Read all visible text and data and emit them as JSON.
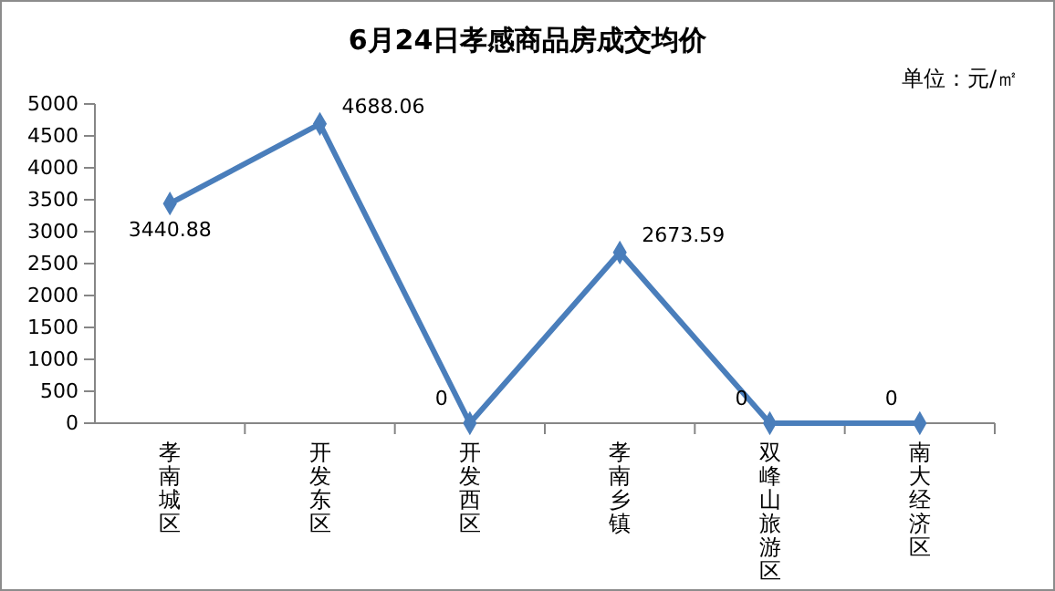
{
  "chart_data": {
    "type": "line",
    "title": "6月24日孝感商品房成交均价",
    "annotations": [
      "单位：元/㎡"
    ],
    "categories": [
      "孝南城区",
      "开发东区",
      "开发西区",
      "孝南乡镇",
      "双峰山旅游区",
      "南大经济区"
    ],
    "series": [
      {
        "color": "#4a7ebb",
        "values": [
          3440.88,
          4688.06,
          0,
          2673.59,
          0,
          0
        ]
      }
    ],
    "ylim": [
      0,
      5000
    ],
    "yticks": [
      0,
      500,
      1000,
      1500,
      2000,
      2500,
      3000,
      3500,
      4000,
      4500,
      5000
    ],
    "grid": false,
    "marker": "diamond",
    "line_style": "solid",
    "data_labels": true
  }
}
